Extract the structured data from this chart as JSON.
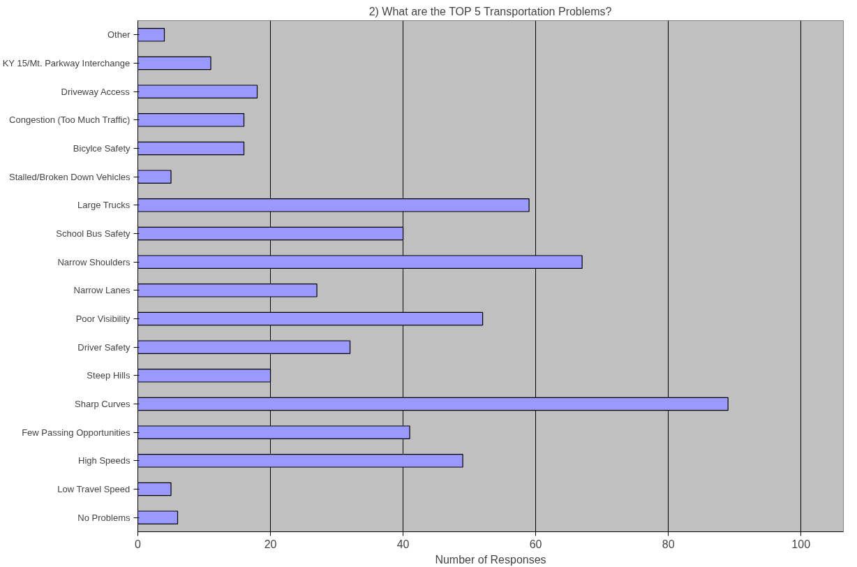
{
  "chart_data": {
    "type": "bar",
    "orientation": "horizontal",
    "title": "2) What are the TOP 5 Transportation Problems?",
    "xlabel": "Number of Responses",
    "categories": [
      "Other",
      "KY 15/Mt. Parkway Interchange",
      "Driveway Access",
      "Congestion (Too Much Traffic)",
      "Bicylce Safety",
      "Stalled/Broken Down Vehicles",
      "Large Trucks",
      "School Bus Safety",
      "Narrow Shoulders",
      "Narrow Lanes",
      "Poor Visibility",
      "Driver Safety",
      "Steep Hills",
      "Sharp Curves",
      "Few Passing Opportunities",
      "High Speeds",
      "Low Travel Speed",
      "No Problems"
    ],
    "values": [
      4,
      11,
      18,
      16,
      16,
      5,
      59,
      40,
      67,
      27,
      52,
      32,
      20,
      89,
      41,
      49,
      5,
      6
    ],
    "color": "#9999ff",
    "xlim": [
      0,
      106.4
    ],
    "xticks": [
      0,
      20,
      40,
      60,
      80,
      100
    ],
    "grid": "x"
  }
}
